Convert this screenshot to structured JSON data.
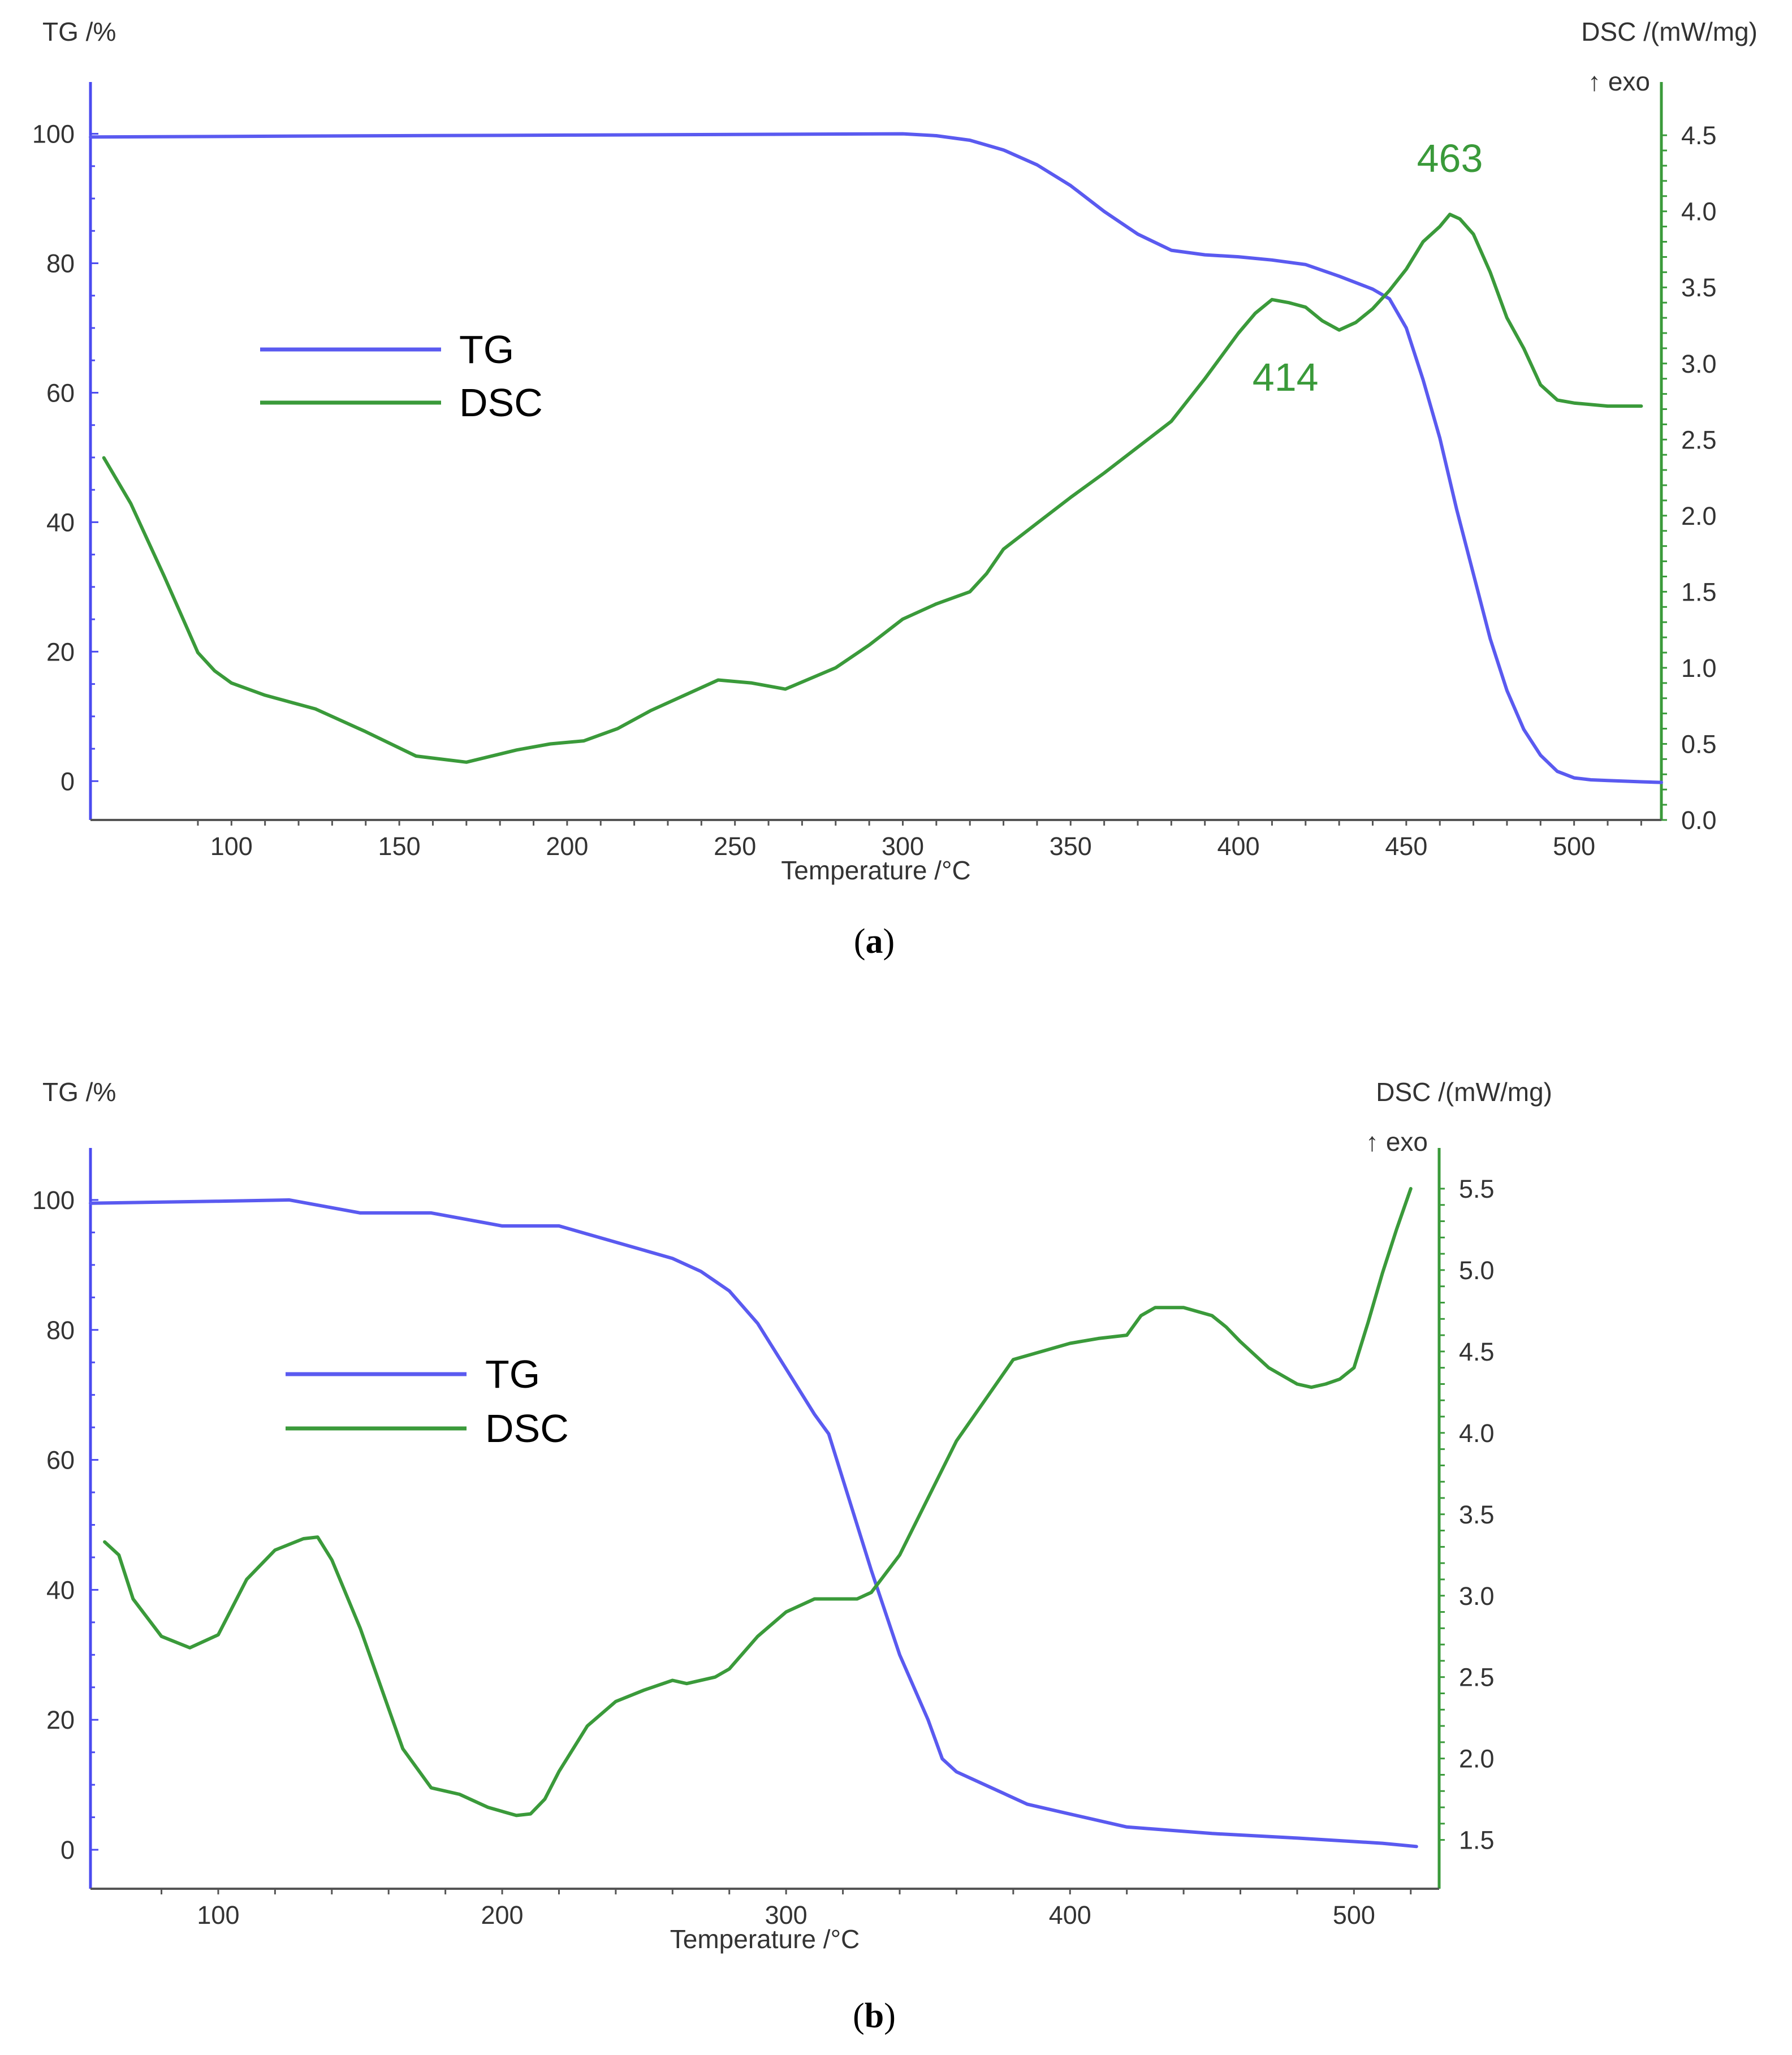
{
  "colors": {
    "tg": "#5a5af0",
    "dsc": "#3a9a3a",
    "axis_left": "#4b4bf0",
    "axis_right": "#3a9a3a",
    "text": "#333333"
  },
  "chart_data": [
    {
      "type": "line",
      "panel": "a",
      "caption": "(a)",
      "caption_parts": {
        "open": "(",
        "letter": "a",
        "close": ")"
      },
      "xlabel": "Temperature /°C",
      "ylabel_left": "TG /%",
      "ylabel_right": "DSC /(mW/mg)",
      "ylabel_right_note": "↑ exo",
      "xlim": [
        58,
        526
      ],
      "ylim_left": [
        -6,
        108
      ],
      "ylim_right": [
        0,
        4.85
      ],
      "xticks": [
        100,
        150,
        200,
        250,
        300,
        350,
        400,
        450,
        500
      ],
      "yticks_left": [
        0,
        20,
        40,
        60,
        80,
        100
      ],
      "yticks_right": [
        0.0,
        0.5,
        1.0,
        1.5,
        2.0,
        2.5,
        3.0,
        3.5,
        4.0,
        4.5
      ],
      "yticks_right_labels": [
        "0.0",
        "0.5",
        "1.0",
        "1.5",
        "2.0",
        "2.5",
        "3.0",
        "3.5",
        "4.0",
        "4.5"
      ],
      "legend": [
        "TG",
        "DSC"
      ],
      "annotations": [
        {
          "text": "414",
          "x": 414,
          "y": 2.82
        },
        {
          "text": "463",
          "x": 463,
          "y": 4.26
        }
      ],
      "series": [
        {
          "name": "TG",
          "axis": "left",
          "x": [
            58,
            100,
            150,
            200,
            250,
            300,
            310,
            320,
            330,
            340,
            350,
            360,
            370,
            380,
            390,
            400,
            410,
            420,
            430,
            440,
            445,
            450,
            455,
            460,
            465,
            470,
            475,
            480,
            485,
            490,
            495,
            500,
            505,
            510,
            520,
            526
          ],
          "y": [
            99.5,
            99.6,
            99.7,
            99.8,
            99.9,
            100,
            99.7,
            99.0,
            97.5,
            95.2,
            92.0,
            88.0,
            84.5,
            82.0,
            81.3,
            81.0,
            80.5,
            79.8,
            78.0,
            76.0,
            74.5,
            70.0,
            62.0,
            53.0,
            42.0,
            32.0,
            22.0,
            14.0,
            8.0,
            4.0,
            1.5,
            0.5,
            0.2,
            0.1,
            -0.1,
            -0.2
          ],
          "values": [
            99.5,
            99.6,
            99.7,
            99.8,
            99.9,
            100,
            99.7,
            99.0,
            97.5,
            95.2,
            92.0,
            88.0,
            84.5,
            82.0,
            81.3,
            81.0,
            80.5,
            79.8,
            78.0,
            76.0,
            74.5,
            70.0,
            62.0,
            53.0,
            42.0,
            32.0,
            22.0,
            14.0,
            8.0,
            4.0,
            1.5,
            0.5,
            0.2,
            0.1,
            -0.1,
            -0.2
          ]
        },
        {
          "name": "DSC",
          "axis": "right",
          "x": [
            62,
            70,
            80,
            90,
            95,
            100,
            110,
            125,
            140,
            155,
            170,
            185,
            195,
            205,
            215,
            225,
            235,
            245,
            255,
            265,
            280,
            290,
            300,
            310,
            320,
            325,
            330,
            340,
            350,
            360,
            370,
            380,
            390,
            400,
            405,
            410,
            415,
            420,
            425,
            430,
            435,
            440,
            445,
            450,
            455,
            460,
            463,
            466,
            470,
            475,
            480,
            485,
            490,
            495,
            500,
            510,
            520
          ],
          "y": [
            2.38,
            2.08,
            1.6,
            1.1,
            0.98,
            0.9,
            0.82,
            0.73,
            0.58,
            0.42,
            0.38,
            0.46,
            0.5,
            0.52,
            0.6,
            0.72,
            0.82,
            0.92,
            0.9,
            0.86,
            1.0,
            1.15,
            1.32,
            1.42,
            1.5,
            1.62,
            1.78,
            1.95,
            2.12,
            2.28,
            2.45,
            2.62,
            2.9,
            3.2,
            3.33,
            3.42,
            3.4,
            3.37,
            3.28,
            3.22,
            3.27,
            3.36,
            3.48,
            3.62,
            3.8,
            3.9,
            3.98,
            3.95,
            3.85,
            3.6,
            3.3,
            3.1,
            2.86,
            2.76,
            2.74,
            2.72,
            2.72
          ],
          "values": [
            2.38,
            2.08,
            1.6,
            1.1,
            0.98,
            0.9,
            0.82,
            0.73,
            0.58,
            0.42,
            0.38,
            0.46,
            0.5,
            0.52,
            0.6,
            0.72,
            0.82,
            0.92,
            0.9,
            0.86,
            1.0,
            1.15,
            1.32,
            1.42,
            1.5,
            1.62,
            1.78,
            1.95,
            2.12,
            2.28,
            2.45,
            2.62,
            2.9,
            3.2,
            3.33,
            3.42,
            3.4,
            3.37,
            3.28,
            3.22,
            3.27,
            3.36,
            3.48,
            3.62,
            3.8,
            3.9,
            3.98,
            3.95,
            3.85,
            3.6,
            3.3,
            3.1,
            2.86,
            2.76,
            2.74,
            2.72,
            2.72
          ]
        }
      ]
    },
    {
      "type": "line",
      "panel": "b",
      "caption": "(b)",
      "caption_parts": {
        "open": "(",
        "letter": "b",
        "close": ")"
      },
      "xlabel": "Temperature /°C",
      "ylabel_left": "TG /%",
      "ylabel_right": "DSC /(mW/mg)",
      "ylabel_right_note": "↑ exo",
      "xlim": [
        55,
        530
      ],
      "ylim_left": [
        -6,
        108
      ],
      "ylim_right": [
        1.2,
        5.75
      ],
      "xticks": [
        100,
        200,
        300,
        400,
        500
      ],
      "yticks_left": [
        0,
        20,
        40,
        60,
        80,
        100
      ],
      "yticks_right": [
        1.5,
        2.0,
        2.5,
        3.0,
        3.5,
        4.0,
        4.5,
        5.0,
        5.5
      ],
      "yticks_right_labels": [
        "1.5",
        "2.0",
        "2.5",
        "3.0",
        "3.5",
        "4.0",
        "4.5",
        "5.0",
        "5.5"
      ],
      "legend": [
        "TG",
        "DSC"
      ],
      "annotations": [],
      "series": [
        {
          "name": "TG",
          "axis": "left",
          "x": [
            55,
            100,
            125,
            150,
            175,
            200,
            220,
            240,
            260,
            270,
            280,
            290,
            300,
            310,
            315,
            320,
            330,
            340,
            350,
            355,
            360,
            370,
            385,
            400,
            420,
            450,
            480,
            510,
            522
          ],
          "y": [
            99.5,
            99.8,
            100,
            98,
            98,
            96,
            96,
            93.5,
            91,
            89,
            86,
            81,
            74,
            67,
            64,
            57,
            43,
            30,
            20,
            14,
            12,
            10,
            7,
            5.5,
            3.5,
            2.5,
            1.8,
            1.0,
            0.5
          ],
          "values": [
            99.5,
            99.8,
            100,
            98,
            98,
            96,
            96,
            93.5,
            91,
            89,
            86,
            81,
            74,
            67,
            64,
            57,
            43,
            30,
            20,
            14,
            12,
            10,
            7,
            5.5,
            3.5,
            2.5,
            1.8,
            1.0,
            0.5
          ]
        },
        {
          "name": "DSC",
          "axis": "right",
          "x": [
            60,
            65,
            70,
            80,
            90,
            100,
            110,
            120,
            130,
            135,
            140,
            150,
            165,
            175,
            185,
            195,
            205,
            210,
            215,
            220,
            230,
            240,
            250,
            260,
            265,
            275,
            280,
            290,
            300,
            310,
            320,
            325,
            330,
            340,
            350,
            360,
            370,
            380,
            390,
            400,
            410,
            420,
            425,
            430,
            440,
            450,
            455,
            460,
            470,
            480,
            485,
            490,
            495,
            500,
            505,
            510,
            515,
            520
          ],
          "y": [
            3.33,
            3.25,
            2.98,
            2.75,
            2.68,
            2.76,
            3.1,
            3.28,
            3.35,
            3.36,
            3.22,
            2.8,
            2.06,
            1.82,
            1.78,
            1.7,
            1.65,
            1.66,
            1.75,
            1.92,
            2.2,
            2.35,
            2.42,
            2.48,
            2.46,
            2.5,
            2.55,
            2.75,
            2.9,
            2.98,
            2.98,
            2.98,
            3.02,
            3.25,
            3.6,
            3.95,
            4.2,
            4.45,
            4.5,
            4.55,
            4.58,
            4.6,
            4.72,
            4.77,
            4.77,
            4.72,
            4.65,
            4.56,
            4.4,
            4.3,
            4.28,
            4.3,
            4.33,
            4.4,
            4.68,
            4.98,
            5.25,
            5.5
          ],
          "values": [
            3.33,
            3.25,
            2.98,
            2.75,
            2.68,
            2.76,
            3.1,
            3.28,
            3.35,
            3.36,
            3.22,
            2.8,
            2.06,
            1.82,
            1.78,
            1.7,
            1.65,
            1.66,
            1.75,
            1.92,
            2.2,
            2.35,
            2.42,
            2.48,
            2.46,
            2.5,
            2.55,
            2.75,
            2.9,
            2.98,
            2.98,
            2.98,
            3.02,
            3.25,
            3.6,
            3.95,
            4.2,
            4.45,
            4.5,
            4.55,
            4.58,
            4.6,
            4.72,
            4.77,
            4.77,
            4.72,
            4.65,
            4.56,
            4.4,
            4.3,
            4.28,
            4.3,
            4.33,
            4.4,
            4.68,
            4.98,
            5.25,
            5.5
          ]
        }
      ]
    }
  ]
}
